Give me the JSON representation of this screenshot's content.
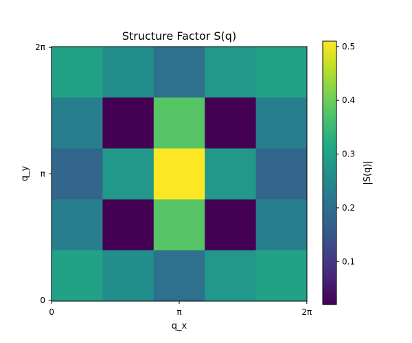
{
  "chart_data": {
    "type": "heatmap",
    "title": "Structure Factor S(q)",
    "xlabel": "q_x",
    "ylabel": "q_y",
    "x_ticks": [
      "0",
      "π",
      "2π"
    ],
    "y_ticks": [
      "0",
      "π",
      "2π"
    ],
    "x_range_label": "q_x from 0 to 2π",
    "colormap": "viridis",
    "colorbar": {
      "label": "|S(q)|",
      "min": 0.02,
      "max": 0.51,
      "ticks": [
        0.1,
        0.2,
        0.3,
        0.4,
        0.5
      ]
    },
    "rows_top_to_bottom": [
      [
        0.3,
        0.26,
        0.2,
        0.28,
        0.3
      ],
      [
        0.23,
        0.02,
        0.38,
        0.02,
        0.23
      ],
      [
        0.18,
        0.28,
        0.51,
        0.28,
        0.18
      ],
      [
        0.23,
        0.02,
        0.38,
        0.02,
        0.23
      ],
      [
        0.3,
        0.26,
        0.2,
        0.28,
        0.3
      ]
    ]
  }
}
